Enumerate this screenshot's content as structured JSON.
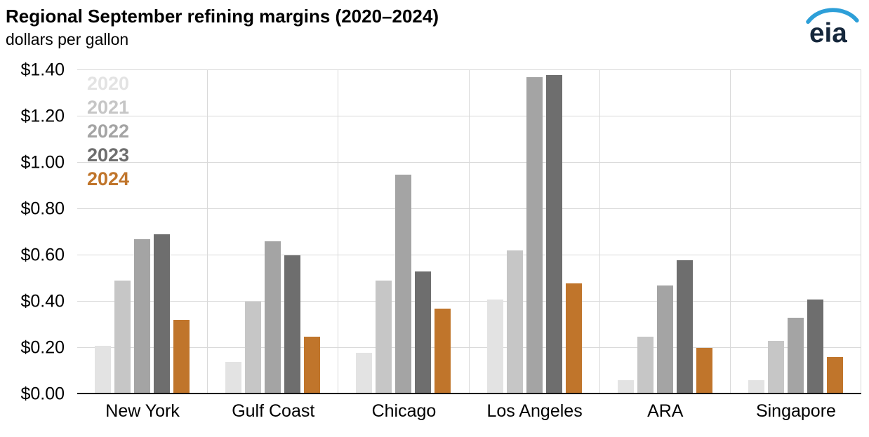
{
  "header": {
    "title": "Regional September refining margins (2020–2024)",
    "subtitle": "dollars per gallon",
    "logo_text": "eia"
  },
  "colors": {
    "gridline": "#d9d9d9",
    "axis_line": "#000000",
    "logo_text": "#16283c",
    "logo_arc": "#2d9fd8"
  },
  "chart_data": {
    "type": "bar",
    "title": "Regional September refining margins (2020–2024)",
    "ylabel": "dollars per gallon",
    "xlabel": "",
    "ylim": [
      0,
      1.4
    ],
    "ytick_step": 0.2,
    "ytick_prefix": "$",
    "ytick_decimals": 2,
    "grid": "horizontal",
    "legend_position": "top-left",
    "categories": [
      "New York",
      "Gulf Coast",
      "Chicago",
      "Los Angeles",
      "ARA",
      "Singapore"
    ],
    "series": [
      {
        "name": "2020",
        "color": "#e3e3e3",
        "values": [
          0.21,
          0.14,
          0.18,
          0.41,
          0.06,
          0.06
        ]
      },
      {
        "name": "2021",
        "color": "#c6c6c6",
        "values": [
          0.49,
          0.4,
          0.49,
          0.62,
          0.25,
          0.23
        ]
      },
      {
        "name": "2022",
        "color": "#a4a4a4",
        "values": [
          0.67,
          0.66,
          0.95,
          1.37,
          0.47,
          0.33
        ]
      },
      {
        "name": "2023",
        "color": "#6e6e6e",
        "values": [
          0.69,
          0.6,
          0.53,
          1.38,
          0.58,
          0.41
        ]
      },
      {
        "name": "2024",
        "color": "#c0752b",
        "values": [
          0.32,
          0.25,
          0.37,
          0.48,
          0.2,
          0.16
        ]
      }
    ]
  }
}
